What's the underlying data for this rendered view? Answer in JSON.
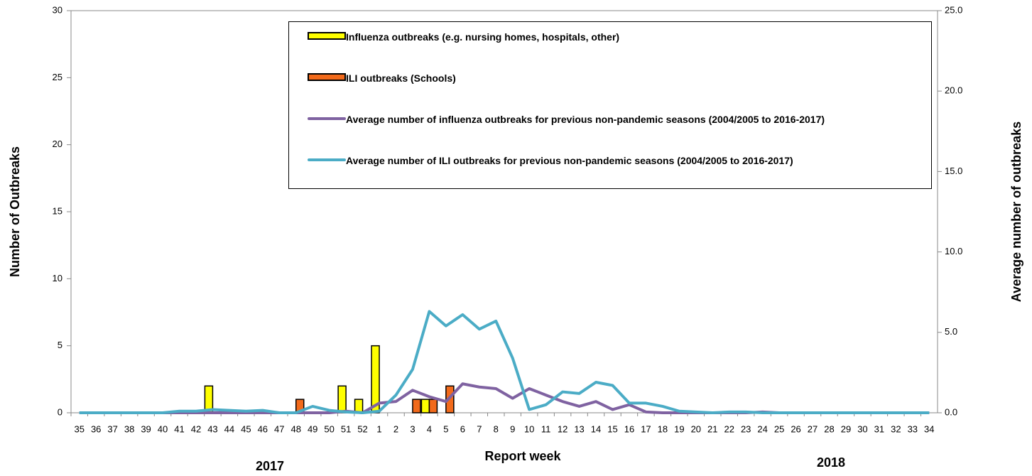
{
  "chart_data": {
    "type": "bar",
    "x_label": "Report week",
    "y_label": "Number of Outbreaks",
    "y2_label": "Average number of outbreaks",
    "year_labels": [
      "2017",
      "2018"
    ],
    "categories": [
      "35",
      "36",
      "37",
      "38",
      "39",
      "40",
      "41",
      "42",
      "43",
      "44",
      "45",
      "46",
      "47",
      "48",
      "49",
      "50",
      "51",
      "52",
      "1",
      "2",
      "3",
      "4",
      "5",
      "6",
      "7",
      "8",
      "9",
      "10",
      "11",
      "12",
      "13",
      "14",
      "15",
      "16",
      "17",
      "18",
      "19",
      "20",
      "21",
      "22",
      "23",
      "24",
      "25",
      "26",
      "27",
      "28",
      "29",
      "30",
      "31",
      "32",
      "33",
      "34"
    ],
    "series": [
      {
        "name": "Influenza outbreaks (e.g. nursing homes, hospitals, other)",
        "type": "bar",
        "color": "#ffff00",
        "values": [
          0,
          0,
          0,
          0,
          0,
          0,
          0,
          0,
          2,
          0,
          0,
          0,
          0,
          0,
          0,
          0,
          2,
          1,
          5,
          0,
          0,
          1,
          0,
          0,
          0,
          0,
          0,
          0,
          0,
          0,
          0,
          0,
          0,
          0,
          0,
          0,
          0,
          0,
          0,
          0,
          0,
          0,
          0,
          0,
          0,
          0,
          0,
          0,
          0,
          0,
          0,
          0
        ]
      },
      {
        "name": "ILI outbreaks (Schools)",
        "type": "bar",
        "color": "#f26a1b",
        "values": [
          0,
          0,
          0,
          0,
          0,
          0,
          0,
          0,
          0,
          0,
          0,
          0,
          0,
          1,
          0,
          0,
          0,
          0,
          0,
          0,
          1,
          1,
          2,
          0,
          0,
          0,
          0,
          0,
          0,
          0,
          0,
          0,
          0,
          0,
          0,
          0,
          0,
          0,
          0,
          0,
          0,
          0,
          0,
          0,
          0,
          0,
          0,
          0,
          0,
          0,
          0,
          0
        ]
      },
      {
        "name": "Average number of influenza outbreaks for previous non-pandemic seasons (2004/2005 to 2016-2017)",
        "type": "line",
        "axis": "y2",
        "color": "#7f62a1",
        "values": [
          0,
          0,
          0,
          0,
          0,
          0,
          0,
          0,
          0,
          0,
          0,
          0,
          0,
          0,
          0,
          0,
          0.1,
          0,
          0.6,
          0.7,
          1.4,
          1.0,
          0.7,
          1.8,
          1.6,
          1.5,
          0.9,
          1.5,
          1.1,
          0.7,
          0.4,
          0.7,
          0.2,
          0.5,
          0.05,
          0,
          0,
          0,
          0,
          0,
          0,
          0.05,
          0,
          0,
          0,
          0,
          0,
          0,
          0,
          0,
          0,
          0
        ]
      },
      {
        "name": "Average number of ILI outbreaks for previous non-pandemic seasons (2004/2005 to 2016-2017)",
        "type": "line",
        "axis": "y2",
        "color": "#4bacc6",
        "values": [
          0,
          0,
          0,
          0,
          0,
          0,
          0.1,
          0.1,
          0.2,
          0.15,
          0.1,
          0.15,
          0,
          0,
          0.4,
          0.15,
          0.05,
          0,
          0.1,
          1.1,
          2.7,
          6.3,
          5.4,
          6.1,
          5.2,
          5.7,
          3.4,
          0.2,
          0.5,
          1.3,
          1.2,
          1.9,
          1.7,
          0.6,
          0.6,
          0.4,
          0.1,
          0.05,
          0,
          0.05,
          0.05,
          0,
          0,
          0,
          0,
          0,
          0,
          0,
          0,
          0,
          0,
          0
        ]
      }
    ],
    "ylim": [
      0,
      30
    ],
    "yticks": [
      0,
      5,
      10,
      15,
      20,
      25,
      30
    ],
    "y2lim": [
      0,
      25
    ],
    "y2ticks": [
      {
        "value": 0,
        "label": "0.0"
      },
      {
        "value": 5,
        "label": "5.0"
      },
      {
        "value": 10,
        "label": "10.0"
      },
      {
        "value": 15,
        "label": "15.0"
      },
      {
        "value": 20,
        "label": "20.0"
      },
      {
        "value": 25,
        "label": "25.0"
      }
    ]
  }
}
